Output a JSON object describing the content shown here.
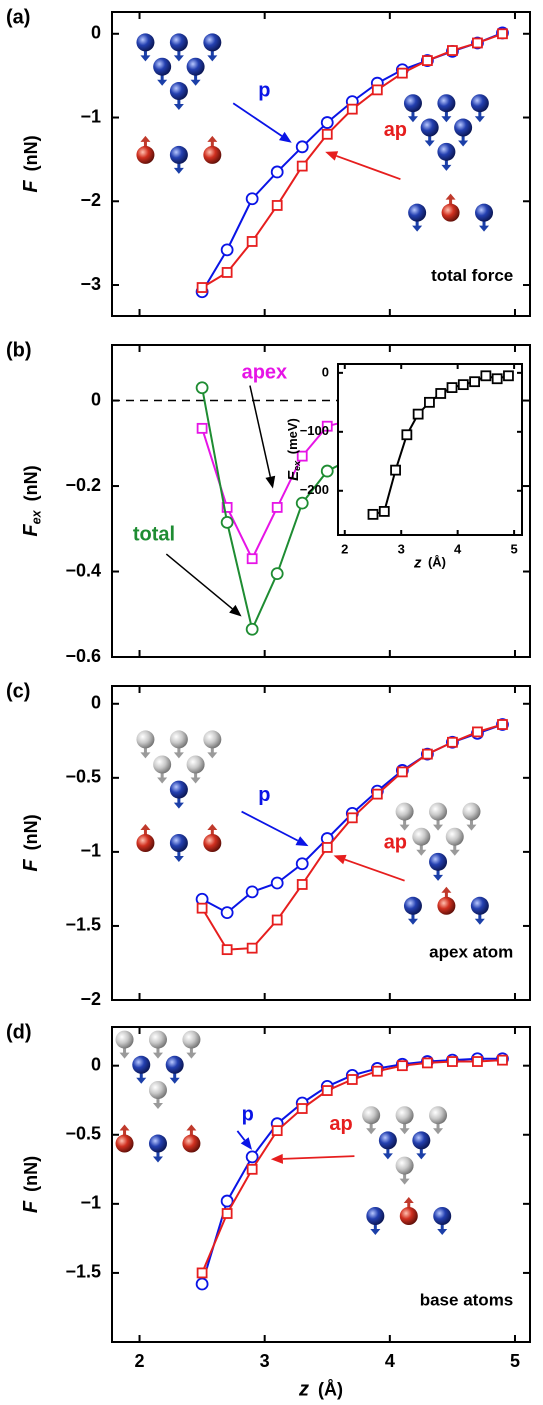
{
  "chart_data": [
    {
      "type": "line",
      "panel": "(a)",
      "ylabel": {
        "symbol": "F",
        "unit": "(nN)"
      },
      "note": "total force",
      "x": [
        2.5,
        2.7,
        2.9,
        3.1,
        3.3,
        3.5,
        3.7,
        3.9,
        4.1,
        4.3,
        4.5,
        4.7,
        4.9
      ],
      "series": [
        {
          "name": "p",
          "color": "#0a14e6",
          "marker": "circle",
          "values": [
            -3.08,
            -2.58,
            -1.97,
            -1.65,
            -1.35,
            -1.06,
            -0.81,
            -0.59,
            -0.43,
            -0.32,
            -0.21,
            -0.11,
            0.01
          ]
        },
        {
          "name": "ap",
          "color": "#e61e1e",
          "marker": "square",
          "values": [
            -3.03,
            -2.85,
            -2.48,
            -2.05,
            -1.58,
            -1.2,
            -0.9,
            -0.67,
            -0.47,
            -0.32,
            -0.2,
            -0.11,
            0.0
          ]
        }
      ],
      "xlim": [
        1.78,
        5.12
      ],
      "xticks": [
        2,
        3,
        4,
        5
      ],
      "show_xtick_labels": false,
      "ylim": [
        -3.37,
        0.26
      ],
      "yticks": [
        0,
        {
          "value": -1,
          "label": "−1"
        },
        {
          "value": -2,
          "label": "−2"
        },
        {
          "value": -3,
          "label": "−3"
        }
      ]
    },
    {
      "type": "line",
      "panel": "(b)",
      "ylabel": {
        "symbol": "F",
        "subscript": "ex",
        "unit": "(nN)"
      },
      "zero_line": true,
      "x": [
        2.5,
        2.7,
        2.9,
        3.1,
        3.3,
        3.5,
        3.7,
        3.9,
        4.1,
        4.3,
        4.5,
        4.7,
        4.9
      ],
      "series": [
        {
          "name": "apex",
          "color": "#e614e6",
          "marker": "square",
          "values": [
            -0.065,
            -0.25,
            -0.37,
            -0.25,
            -0.13,
            -0.06,
            -0.045,
            -0.025,
            -0.01,
            0.0,
            -0.005,
            -0.005,
            -0.005
          ]
        },
        {
          "name": "total",
          "color": "#1e8c32",
          "marker": "circle",
          "values": [
            0.03,
            -0.285,
            -0.535,
            -0.405,
            -0.24,
            -0.165,
            -0.135,
            -0.09,
            -0.055,
            -0.035,
            -0.025,
            -0.02,
            -0.015
          ]
        }
      ],
      "xlim": [
        1.78,
        5.12
      ],
      "xticks": [
        2,
        3,
        4,
        5
      ],
      "show_xtick_labels": false,
      "ylim": [
        -0.6,
        0.13
      ],
      "yticks": [
        0,
        {
          "value": -0.2,
          "label": "−0.2"
        },
        {
          "value": -0.4,
          "label": "−0.4"
        },
        {
          "value": -0.6,
          "label": "−0.6"
        }
      ]
    },
    {
      "type": "line",
      "ylabel": {
        "symbol": "E",
        "subscript": "ex",
        "unit": "(meV)"
      },
      "xlabel": {
        "symbol": "z",
        "unit": "(Å)"
      },
      "x": [
        2.5,
        2.7,
        2.9,
        3.1,
        3.3,
        3.5,
        3.7,
        3.9,
        4.1,
        4.3,
        4.5,
        4.7,
        4.9
      ],
      "series": [
        {
          "color": "#000000",
          "marker": "square",
          "values": [
            -240,
            -235,
            -165,
            -105,
            -70,
            -50,
            -35,
            -25,
            -20,
            -15,
            -5,
            -10,
            -5
          ]
        }
      ],
      "xlim": [
        1.88,
        5.14
      ],
      "xticks": [
        2,
        3,
        4,
        5
      ],
      "show_xtick_labels": true,
      "ylim": [
        -275,
        15
      ],
      "yticks": [
        0,
        {
          "value": -100,
          "label": "−100"
        },
        {
          "value": -200,
          "label": "−200"
        }
      ]
    },
    {
      "type": "line",
      "panel": "(c)",
      "ylabel": {
        "symbol": "F",
        "unit": "(nN)"
      },
      "note": "apex atom",
      "x": [
        2.5,
        2.7,
        2.9,
        3.1,
        3.3,
        3.5,
        3.7,
        3.9,
        4.1,
        4.3,
        4.5,
        4.7,
        4.9
      ],
      "series": [
        {
          "name": "p",
          "color": "#0a14e6",
          "marker": "circle",
          "values": [
            -1.32,
            -1.41,
            -1.27,
            -1.21,
            -1.08,
            -0.91,
            -0.74,
            -0.59,
            -0.45,
            -0.34,
            -0.26,
            -0.2,
            -0.14
          ]
        },
        {
          "name": "ap",
          "color": "#e61e1e",
          "marker": "square",
          "values": [
            -1.38,
            -1.66,
            -1.65,
            -1.46,
            -1.22,
            -0.97,
            -0.77,
            -0.61,
            -0.46,
            -0.34,
            -0.26,
            -0.19,
            -0.14
          ]
        }
      ],
      "xlim": [
        1.78,
        5.12
      ],
      "xticks": [
        2,
        3,
        4,
        5
      ],
      "show_xtick_labels": false,
      "ylim": [
        -2,
        0.12
      ],
      "yticks": [
        0,
        {
          "value": -0.5,
          "label": "−0.5"
        },
        {
          "value": -1,
          "label": "−1"
        },
        {
          "value": -1.5,
          "label": "−1.5"
        },
        {
          "value": -2,
          "label": "−2"
        }
      ]
    },
    {
      "type": "line",
      "panel": "(d)",
      "ylabel": {
        "symbol": "F",
        "unit": "(nN)"
      },
      "xlabel": {
        "symbol": "z",
        "unit": "(Å)"
      },
      "note": "base atoms",
      "x": [
        2.5,
        2.7,
        2.9,
        3.1,
        3.3,
        3.5,
        3.7,
        3.9,
        4.1,
        4.3,
        4.5,
        4.7,
        4.9
      ],
      "series": [
        {
          "name": "p",
          "color": "#0a14e6",
          "marker": "circle",
          "values": [
            -1.58,
            -0.98,
            -0.66,
            -0.42,
            -0.27,
            -0.15,
            -0.07,
            -0.02,
            0.01,
            0.03,
            0.04,
            0.05,
            0.05
          ]
        },
        {
          "name": "ap",
          "color": "#e61e1e",
          "marker": "square",
          "values": [
            -1.5,
            -1.07,
            -0.75,
            -0.47,
            -0.31,
            -0.18,
            -0.1,
            -0.04,
            0.0,
            0.02,
            0.03,
            0.03,
            0.04
          ]
        }
      ],
      "xlim": [
        1.78,
        5.12
      ],
      "xticks": [
        2,
        3,
        4,
        5
      ],
      "show_xtick_labels": true,
      "ylim": [
        -2.0,
        0.28
      ],
      "yticks": [
        0,
        {
          "value": -0.5,
          "label": "−0.5"
        },
        {
          "value": -1,
          "label": "−1"
        },
        {
          "value": -1.5,
          "label": "−1.5"
        }
      ]
    }
  ]
}
